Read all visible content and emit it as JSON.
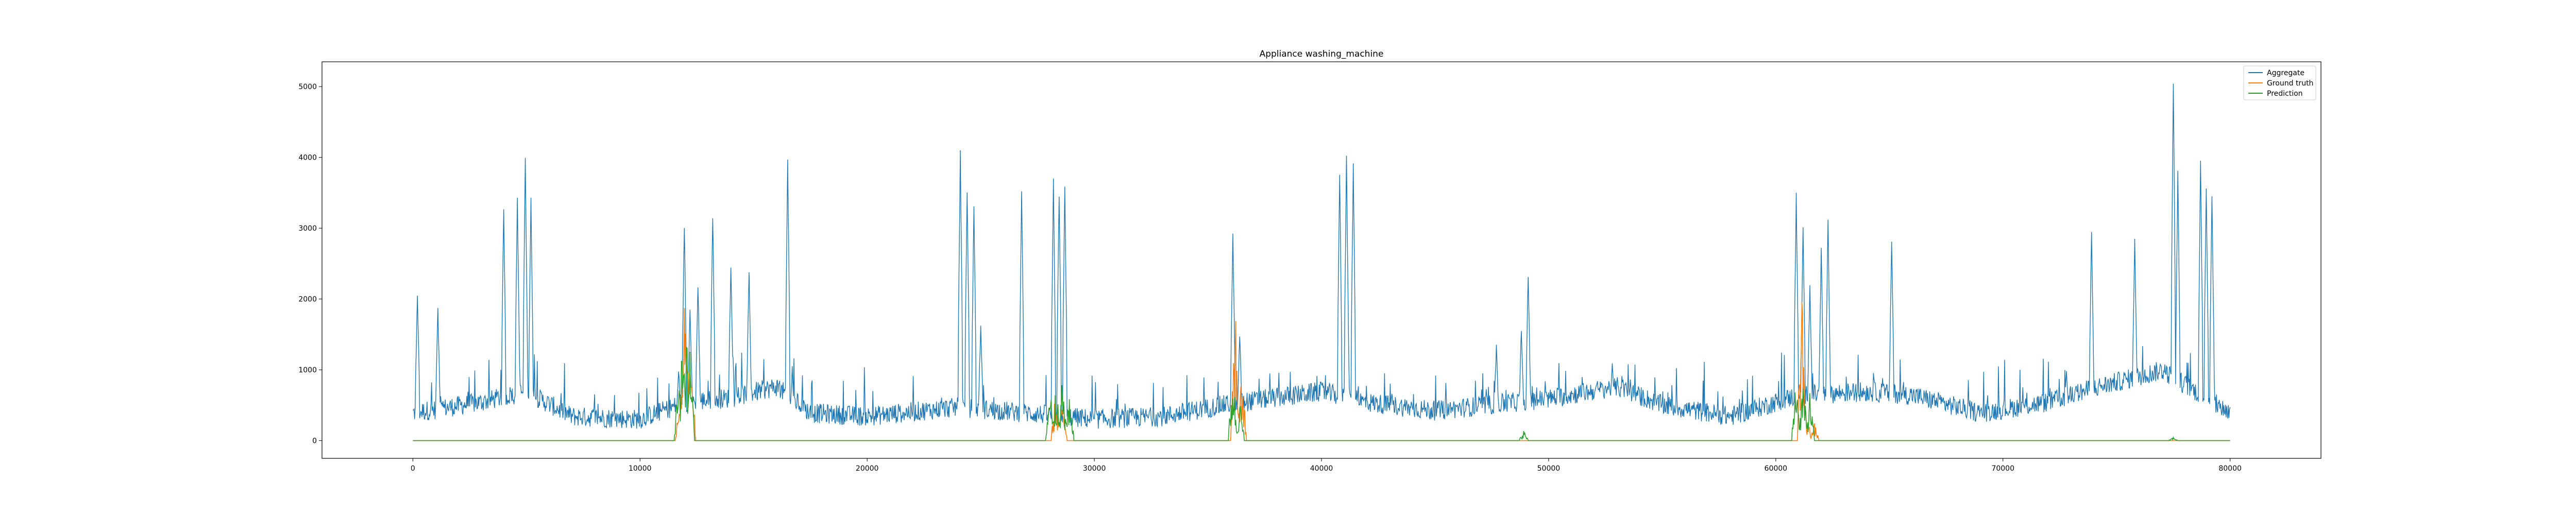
{
  "chart_data": {
    "type": "line",
    "title": "Appliance washing_machine",
    "xlabel": "",
    "ylabel": "",
    "xlim": [
      -4000,
      84000
    ],
    "ylim": [
      -250,
      5350
    ],
    "x_ticks": [
      0,
      10000,
      20000,
      30000,
      40000,
      50000,
      60000,
      70000,
      80000
    ],
    "x_tick_labels": [
      "0",
      "10000",
      "20000",
      "30000",
      "40000",
      "50000",
      "60000",
      "70000",
      "80000"
    ],
    "y_ticks": [
      0,
      1000,
      2000,
      3000,
      4000,
      5000
    ],
    "y_tick_labels": [
      "0",
      "1000",
      "2000",
      "3000",
      "4000",
      "5000"
    ],
    "grid": false,
    "legend_position": "top-right",
    "colors": {
      "aggregate": "#1f77b4",
      "ground_truth": "#ff7f0e",
      "prediction": "#2ca02c"
    },
    "series": [
      {
        "name": "Aggregate",
        "color": "#1f77b4",
        "baseline": [
          [
            0,
            350
          ],
          [
            3000,
            500
          ],
          [
            5000,
            650
          ],
          [
            7000,
            300
          ],
          [
            10000,
            260
          ],
          [
            12000,
            500
          ],
          [
            14000,
            560
          ],
          [
            16000,
            720
          ],
          [
            17500,
            350
          ],
          [
            20000,
            300
          ],
          [
            24000,
            430
          ],
          [
            27000,
            350
          ],
          [
            30000,
            260
          ],
          [
            33000,
            300
          ],
          [
            36000,
            480
          ],
          [
            40000,
            650
          ],
          [
            42000,
            500
          ],
          [
            45000,
            380
          ],
          [
            47000,
            450
          ],
          [
            50000,
            550
          ],
          [
            53000,
            720
          ],
          [
            55000,
            460
          ],
          [
            58000,
            300
          ],
          [
            61000,
            600
          ],
          [
            64000,
            650
          ],
          [
            66000,
            600
          ],
          [
            69000,
            350
          ],
          [
            72000,
            500
          ],
          [
            74000,
            700
          ],
          [
            77000,
            950
          ],
          [
            80000,
            350
          ]
        ],
        "spikes": [
          [
            200,
            2050
          ],
          [
            1100,
            1850
          ],
          [
            4000,
            3300
          ],
          [
            4600,
            3450
          ],
          [
            4950,
            3980
          ],
          [
            5200,
            3400
          ],
          [
            11700,
            1000
          ],
          [
            11950,
            3050
          ],
          [
            12200,
            1900
          ],
          [
            12550,
            2200
          ],
          [
            13200,
            3200
          ],
          [
            14000,
            2500
          ],
          [
            14800,
            2400
          ],
          [
            16500,
            3950
          ],
          [
            16700,
            1000
          ],
          [
            24100,
            4050
          ],
          [
            24400,
            3500
          ],
          [
            24700,
            3300
          ],
          [
            25000,
            1600
          ],
          [
            26800,
            3480
          ],
          [
            28200,
            3650
          ],
          [
            28450,
            3500
          ],
          [
            28700,
            3580
          ],
          [
            36100,
            2950
          ],
          [
            36400,
            1500
          ],
          [
            40800,
            3800
          ],
          [
            41100,
            3980
          ],
          [
            41400,
            3900
          ],
          [
            47700,
            1350
          ],
          [
            48800,
            1600
          ],
          [
            49100,
            2350
          ],
          [
            52800,
            1150
          ],
          [
            60900,
            3450
          ],
          [
            61200,
            3000
          ],
          [
            61500,
            2200
          ],
          [
            62000,
            2700
          ],
          [
            62300,
            3100
          ],
          [
            65100,
            2850
          ],
          [
            72800,
            1000
          ],
          [
            73900,
            3000
          ],
          [
            75800,
            2900
          ],
          [
            77500,
            5100
          ],
          [
            77700,
            3800
          ],
          [
            78700,
            3950
          ],
          [
            78950,
            3600
          ],
          [
            79200,
            3500
          ]
        ]
      },
      {
        "name": "Ground truth",
        "color": "#ff7f0e",
        "baseline_value": 0,
        "spikes": [
          [
            11750,
            800
          ],
          [
            11950,
            2150
          ],
          [
            12100,
            1500
          ],
          [
            12250,
            1300
          ],
          [
            28300,
            700
          ],
          [
            28600,
            650
          ],
          [
            36200,
            2250
          ],
          [
            36500,
            1000
          ],
          [
            61150,
            2350
          ],
          [
            61400,
            300
          ],
          [
            61700,
            250
          ]
        ]
      },
      {
        "name": "Prediction",
        "color": "#2ca02c",
        "baseline_value": 0,
        "spikes": [
          [
            11700,
            900
          ],
          [
            11900,
            1750
          ],
          [
            12050,
            1500
          ],
          [
            12200,
            1300
          ],
          [
            28050,
            900
          ],
          [
            28300,
            950
          ],
          [
            28600,
            900
          ],
          [
            28900,
            800
          ],
          [
            36100,
            1000
          ],
          [
            36400,
            600
          ],
          [
            48900,
            150
          ],
          [
            60900,
            1050
          ],
          [
            61200,
            900
          ],
          [
            61500,
            700
          ],
          [
            77500,
            50
          ]
        ]
      }
    ]
  }
}
